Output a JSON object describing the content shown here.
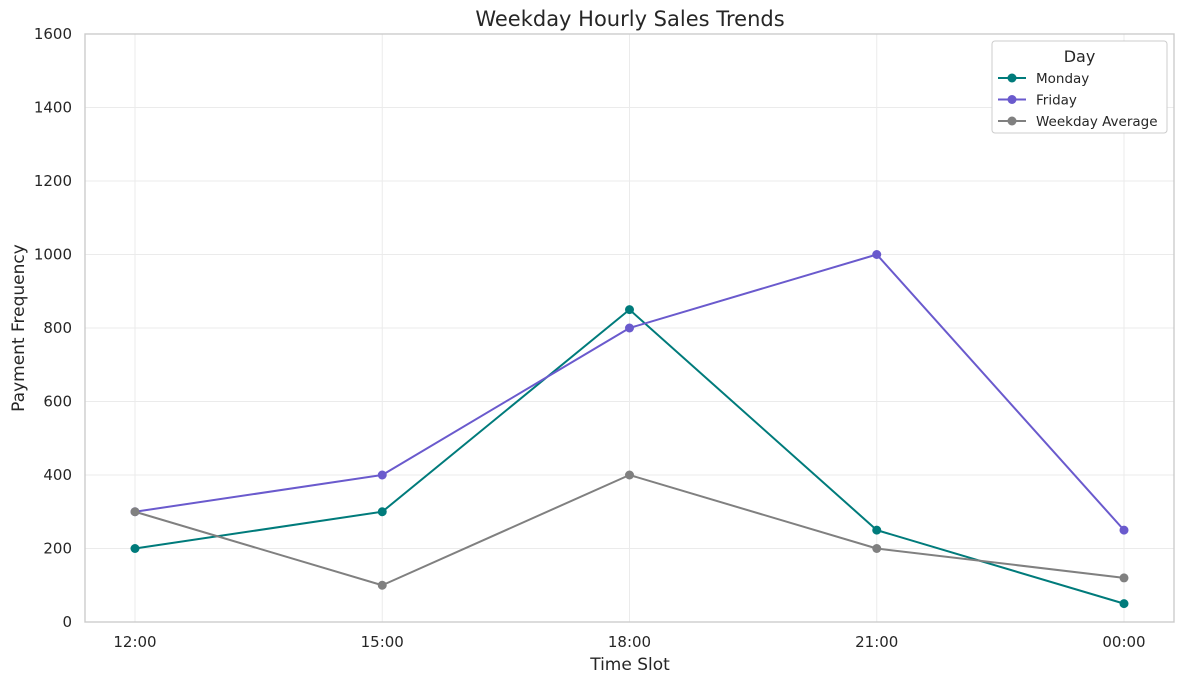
{
  "chart_data": {
    "type": "line",
    "title": "Weekday Hourly Sales Trends",
    "xlabel": "Time Slot",
    "ylabel": "Payment Frequency",
    "categories": [
      "12:00",
      "15:00",
      "18:00",
      "21:00",
      "00:00"
    ],
    "ylim": [
      0,
      1600
    ],
    "yticks": [
      0,
      200,
      400,
      600,
      800,
      1000,
      1200,
      1400,
      1600
    ],
    "grid": true,
    "legend": {
      "title": "Day",
      "placement": "top-right"
    },
    "series": [
      {
        "name": "Monday",
        "color": "#007b7b",
        "values": [
          200,
          300,
          850,
          250,
          50
        ]
      },
      {
        "name": "Friday",
        "color": "#6a5acd",
        "values": [
          300,
          400,
          800,
          1000,
          250
        ]
      },
      {
        "name": "Weekday Average",
        "color": "#808080",
        "values": [
          300,
          100,
          400,
          200,
          120
        ]
      }
    ]
  }
}
